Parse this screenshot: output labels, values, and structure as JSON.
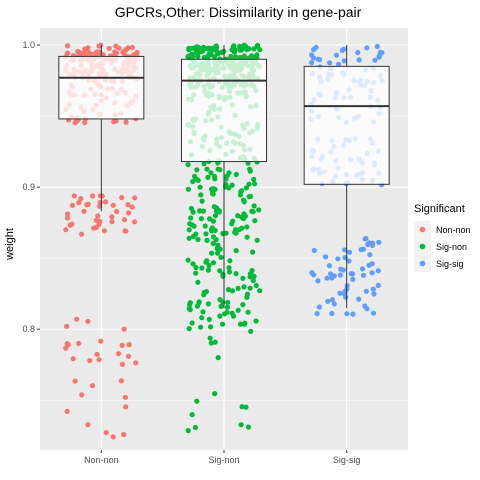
{
  "chart_data": {
    "type": "scatter",
    "title": "GPCRs,Other: Dissimilarity in gene-pair",
    "xlabel": "",
    "ylabel": "weight",
    "categories": [
      "Non-non",
      "Sig-non",
      "Sig-sig"
    ],
    "ylim": [
      0.715,
      1.012
    ],
    "yticks": [
      0.8,
      0.9,
      1.0
    ],
    "ytick_labels": [
      "0.8",
      "0.9",
      "1.0"
    ],
    "grid": true,
    "legend": {
      "title": "Significant",
      "position": "right"
    },
    "series": [
      {
        "name": "Non-non",
        "color": "#F8766D",
        "box": {
          "min": 0.883,
          "q1": 0.948,
          "median": 0.977,
          "q3": 0.992,
          "max": 1.0
        }
      },
      {
        "name": "Sig-non",
        "color": "#00BA38",
        "box": {
          "min": 0.815,
          "q1": 0.918,
          "median": 0.975,
          "q3": 0.99,
          "max": 1.0
        }
      },
      {
        "name": "Sig-sig",
        "color": "#619CFF",
        "box": {
          "min": 0.815,
          "q1": 0.902,
          "median": 0.957,
          "q3": 0.985,
          "max": 1.0
        }
      }
    ],
    "point_clusters": [
      {
        "category": "Non-non",
        "y_range": [
          0.975,
          1.0
        ],
        "count": 150
      },
      {
        "category": "Non-non",
        "y_range": [
          0.945,
          0.975
        ],
        "count": 50
      },
      {
        "category": "Non-non",
        "y_range": [
          0.865,
          0.895
        ],
        "count": 40
      },
      {
        "category": "Non-non",
        "y_range": [
          0.76,
          0.81
        ],
        "count": 22
      },
      {
        "category": "Non-non",
        "y_range": [
          0.72,
          0.76
        ],
        "count": 8
      },
      {
        "category": "Sig-non",
        "y_range": [
          0.97,
          1.0
        ],
        "count": 230
      },
      {
        "category": "Sig-non",
        "y_range": [
          0.9,
          0.97
        ],
        "count": 110
      },
      {
        "category": "Sig-non",
        "y_range": [
          0.8,
          0.9
        ],
        "count": 150
      },
      {
        "category": "Sig-non",
        "y_range": [
          0.72,
          0.8
        ],
        "count": 14
      },
      {
        "category": "Sig-sig",
        "y_range": [
          0.97,
          1.0
        ],
        "count": 45
      },
      {
        "category": "Sig-sig",
        "y_range": [
          0.945,
          0.97
        ],
        "count": 25
      },
      {
        "category": "Sig-sig",
        "y_range": [
          0.9,
          0.935
        ],
        "count": 45
      },
      {
        "category": "Sig-sig",
        "y_range": [
          0.81,
          0.865
        ],
        "count": 60
      }
    ]
  }
}
